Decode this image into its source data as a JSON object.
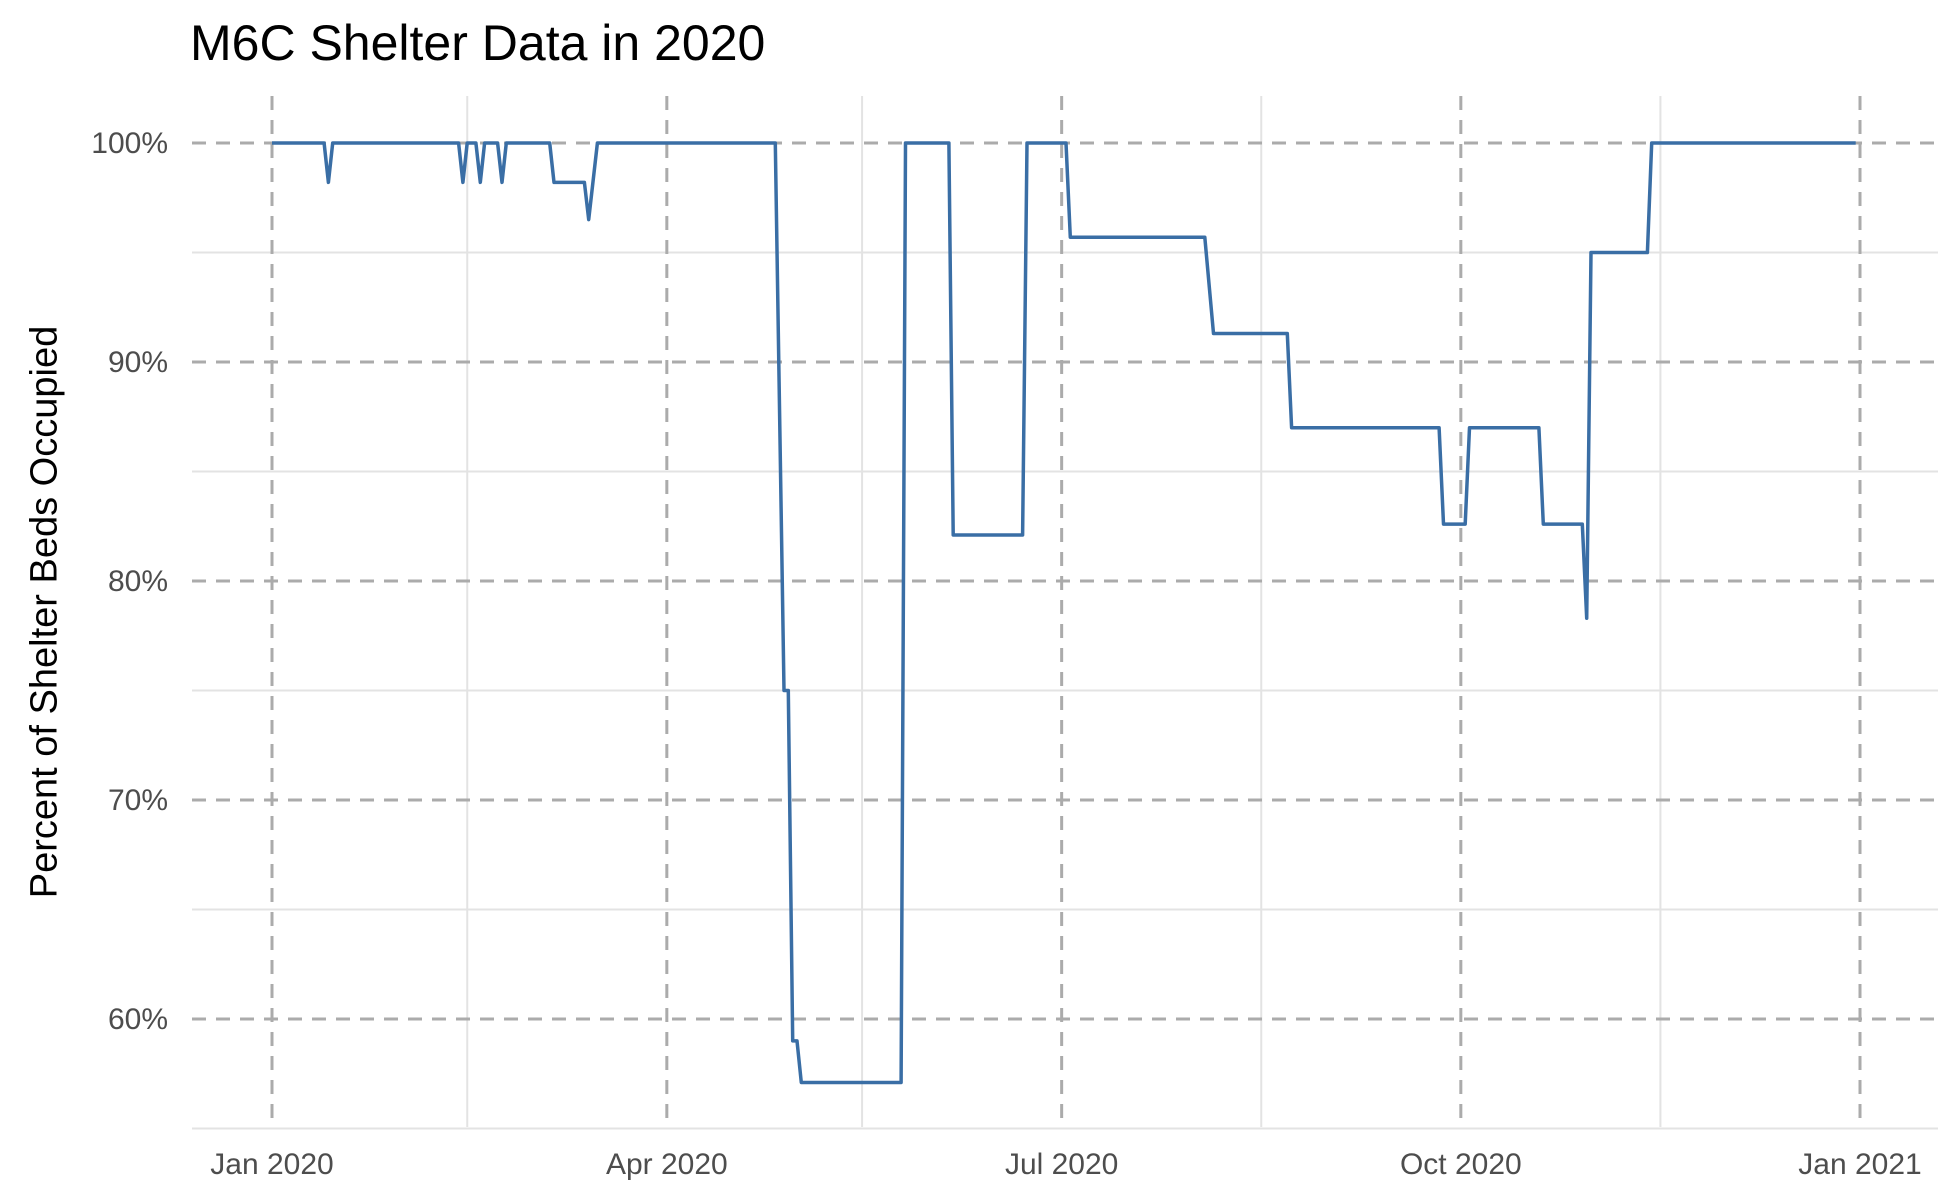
{
  "chart_data": {
    "type": "line",
    "title": "M6C Shelter Data in 2020",
    "xlabel": "",
    "ylabel": "Percent of Shelter Beds Occupied",
    "x_axis": {
      "type": "date",
      "range": [
        "2019-12-20",
        "2021-01-08"
      ],
      "ticks": [
        {
          "date": "2020-01-01",
          "label": "Jan 2020"
        },
        {
          "date": "2020-04-01",
          "label": "Apr 2020"
        },
        {
          "date": "2020-07-01",
          "label": "Jul 2020"
        },
        {
          "date": "2020-10-01",
          "label": "Oct 2020"
        },
        {
          "date": "2021-01-01",
          "label": "Jan 2021"
        }
      ],
      "minor_ticks": [
        "2020-02-15",
        "2020-05-16",
        "2020-08-16",
        "2020-11-16"
      ]
    },
    "y_axis": {
      "range": [
        55,
        101
      ],
      "ticks": [
        {
          "value": 60,
          "label": "60%"
        },
        {
          "value": 70,
          "label": "70%"
        },
        {
          "value": 80,
          "label": "80%"
        },
        {
          "value": 90,
          "label": "90%"
        },
        {
          "value": 100,
          "label": "100%"
        }
      ],
      "minor_ticks": [
        55,
        65,
        75,
        85,
        95
      ]
    },
    "grid": {
      "major": "dashed",
      "minor": "solid"
    },
    "series": [
      {
        "color": "#3a6ea5",
        "x": [
          "2020-01-01",
          "2020-01-13",
          "2020-01-14",
          "2020-01-15",
          "2020-02-13",
          "2020-02-14",
          "2020-02-15",
          "2020-02-17",
          "2020-02-18",
          "2020-02-19",
          "2020-02-22",
          "2020-02-23",
          "2020-02-24",
          "2020-03-05",
          "2020-03-06",
          "2020-03-13",
          "2020-03-14",
          "2020-03-16",
          "2020-03-17",
          "2020-04-26",
          "2020-04-28",
          "2020-04-29",
          "2020-04-30",
          "2020-05-01",
          "2020-05-02",
          "2020-05-25",
          "2020-05-26",
          "2020-06-05",
          "2020-06-06",
          "2020-06-22",
          "2020-06-23",
          "2020-07-02",
          "2020-07-03",
          "2020-08-03",
          "2020-08-05",
          "2020-08-22",
          "2020-08-23",
          "2020-09-26",
          "2020-09-27",
          "2020-10-02",
          "2020-10-03",
          "2020-10-19",
          "2020-10-20",
          "2020-10-29",
          "2020-10-30",
          "2020-10-31",
          "2020-11-13",
          "2020-11-14",
          "2020-12-31"
        ],
        "y": [
          100,
          100,
          98.2,
          100,
          100,
          98.2,
          100,
          100,
          98.2,
          100,
          100,
          98.2,
          100,
          100,
          98.2,
          98.2,
          96.5,
          100,
          100,
          100,
          75,
          75,
          59,
          59,
          57.1,
          57.1,
          100,
          100,
          82.1,
          82.1,
          100,
          100,
          95.7,
          95.7,
          91.3,
          91.3,
          87,
          87,
          82.6,
          82.6,
          87,
          87,
          82.6,
          82.6,
          78.3,
          95,
          95,
          100,
          100
        ]
      }
    ]
  }
}
